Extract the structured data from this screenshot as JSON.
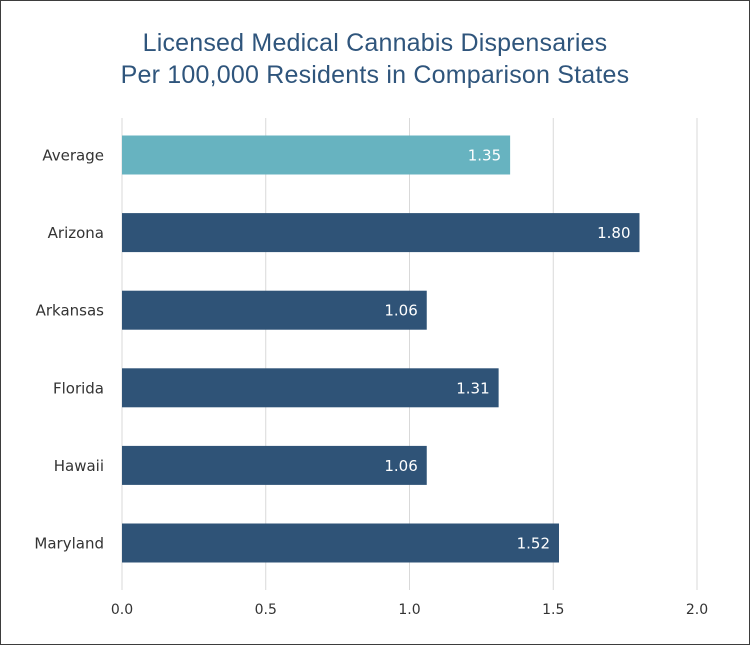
{
  "chart_data": {
    "type": "bar",
    "orientation": "horizontal",
    "title_lines": [
      "Licensed Medical Cannabis Dispensaries",
      "Per 100,000 Residents in Comparison States"
    ],
    "categories": [
      "Average",
      "Arizona",
      "Arkansas",
      "Florida",
      "Hawaii",
      "Maryland"
    ],
    "values": [
      1.35,
      1.8,
      1.06,
      1.31,
      1.06,
      1.52
    ],
    "value_labels": [
      "1.35",
      "1.80",
      "1.06",
      "1.31",
      "1.06",
      "1.52"
    ],
    "xlim": [
      0,
      2.0
    ],
    "xticks": [
      0,
      0.5,
      1.0,
      1.5,
      2.0
    ],
    "xtick_labels": [
      "0.0",
      "0.5",
      "1.0",
      "1.5",
      "2.0"
    ],
    "xlabel": "",
    "ylabel": "",
    "grid": true,
    "colors": {
      "highlight": "#67b3c0",
      "bar": "#2f5377",
      "title": "#2f557c",
      "grid": "#d9d9d9",
      "text": "#333333",
      "value_text": "#ffffff"
    },
    "highlight_category": "Average"
  }
}
